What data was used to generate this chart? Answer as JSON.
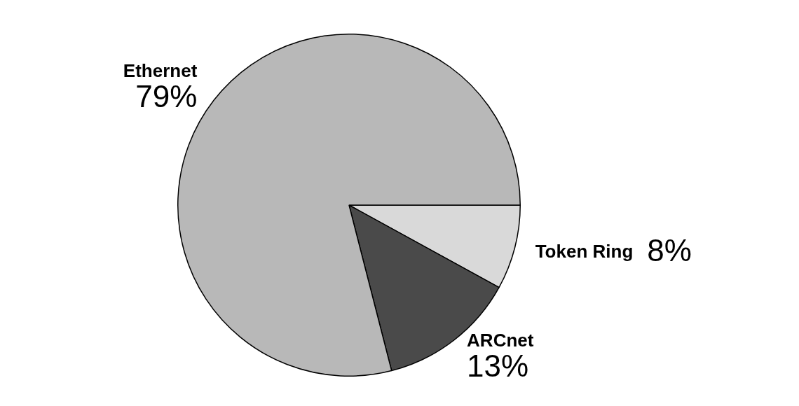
{
  "chart_data": {
    "type": "pie",
    "categories": [
      "Token Ring",
      "ARCnet",
      "Ethernet"
    ],
    "values": [
      8,
      13,
      79
    ],
    "value_labels": [
      "8%",
      "13%",
      "79%"
    ],
    "colors": [
      "#d9d9d9",
      "#4a4a4a",
      "#b8b8b8"
    ],
    "legend": false
  }
}
